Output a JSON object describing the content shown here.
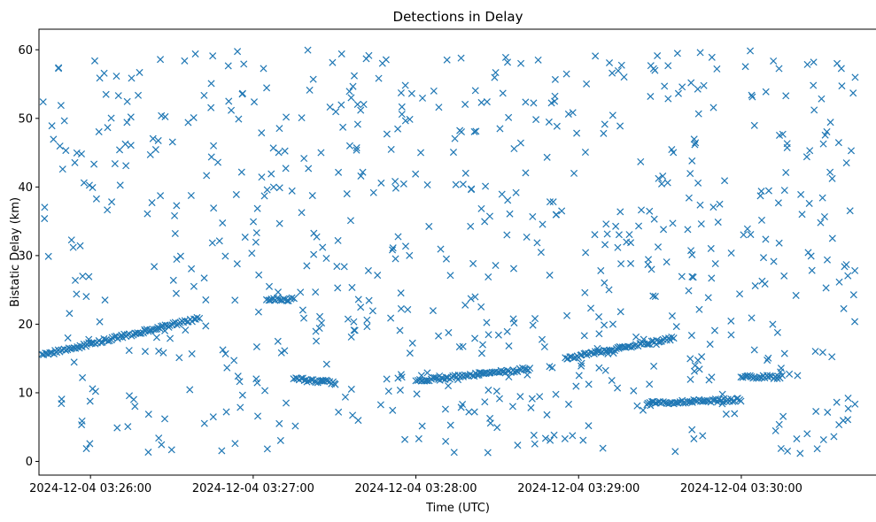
{
  "chart_data": {
    "type": "scatter",
    "title": "Detections in Delay",
    "xlabel": "Time (UTC)",
    "ylabel": "Bistatic Delay (km)",
    "x_ticks": [
      "2024-12-04 03:26:00",
      "2024-12-04 03:27:00",
      "2024-12-04 03:28:00",
      "2024-12-04 03:29:00",
      "2024-12-04 03:30:00"
    ],
    "y_ticks": [
      "0",
      "10",
      "20",
      "30",
      "40",
      "50",
      "60"
    ],
    "xlim": [
      "2024-12-04 03:25:41",
      "2024-12-04 03:30:50"
    ],
    "ylim": [
      -2.0,
      63.0
    ],
    "marker": "x",
    "color": "#1f77b4",
    "grid": false,
    "tracks": [
      {
        "x_start": "2024-12-04 03:25:42",
        "x_end": "2024-12-04 03:26:20",
        "y_start": 15.5,
        "y_end": 19.0
      },
      {
        "x_start": "2024-12-04 03:26:20",
        "x_end": "2024-12-04 03:26:40",
        "y_start": 19.0,
        "y_end": 20.8
      },
      {
        "x_start": "2024-12-04 03:27:05",
        "x_end": "2024-12-04 03:27:15",
        "y_start": 23.5,
        "y_end": 23.7
      },
      {
        "x_start": "2024-12-04 03:27:15",
        "x_end": "2024-12-04 03:27:30",
        "y_start": 12.0,
        "y_end": 11.5
      },
      {
        "x_start": "2024-12-04 03:28:00",
        "x_end": "2024-12-04 03:28:42",
        "y_start": 11.7,
        "y_end": 13.5
      },
      {
        "x_start": "2024-12-04 03:28:55",
        "x_end": "2024-12-04 03:29:35",
        "y_start": 15.0,
        "y_end": 18.0
      },
      {
        "x_start": "2024-12-04 03:29:25",
        "x_end": "2024-12-04 03:30:00",
        "y_start": 8.5,
        "y_end": 9.0
      },
      {
        "x_start": "2024-12-04 03:30:00",
        "x_end": "2024-12-04 03:30:15",
        "y_start": 12.3,
        "y_end": 12.3
      }
    ],
    "clutter": {
      "x_range": [
        "2024-12-04 03:25:42",
        "2024-12-04 03:30:42"
      ],
      "y_range": [
        1,
        60
      ],
      "count": 720
    }
  }
}
